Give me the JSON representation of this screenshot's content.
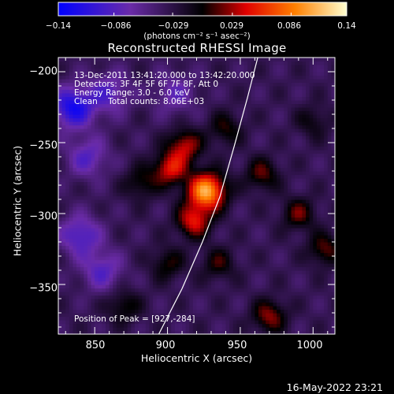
{
  "chart_data": {
    "type": "heatmap",
    "title": "Reconstructed RHESSI Image",
    "xlabel": "Heliocentric X (arcsec)",
    "ylabel": "Heliocentric Y (arcsec)",
    "xlim": [
      825,
      1015
    ],
    "ylim": [
      -385,
      -190
    ],
    "x_ticks": [
      "850",
      "900",
      "950",
      "1000"
    ],
    "y_ticks": [
      "−200",
      "−250",
      "−300",
      "−350"
    ],
    "colorbar": {
      "range": [
        -0.14,
        0.14
      ],
      "tick_labels": [
        "−0.14",
        "−0.086",
        "−0.029",
        "0.029",
        "0.086",
        "0.14"
      ],
      "tick_values": [
        -0.14,
        -0.086,
        -0.029,
        0.029,
        0.086,
        0.14
      ],
      "units": "(photons cm⁻² s⁻¹ asec⁻²)",
      "colors": [
        "#0000ff",
        "#6a2ba8",
        "#000000",
        "#ff0000",
        "#ff8800",
        "#ffffaa"
      ]
    },
    "annotations": [
      "13-Dec-2011 13:41:20.000 to 13:42:20.000",
      "Detectors: 3F 4F 5F 6F 7F 8F, Att 0",
      "Energy Range: 3.0 - 6.0 keV",
      "Clean    Total counts: 8.06E+03"
    ],
    "peak_label": "Position of Peak = [927,-284]",
    "peak": {
      "x": 927,
      "y": -284,
      "value": 0.14
    },
    "secondary_sources": [
      {
        "x": 912,
        "y": -252,
        "value": 0.07
      },
      {
        "x": 902,
        "y": -268,
        "value": 0.08
      },
      {
        "x": 918,
        "y": -305,
        "value": 0.08
      },
      {
        "x": 900,
        "y": -335,
        "value": 0.04
      },
      {
        "x": 882,
        "y": -278,
        "value": 0.04
      },
      {
        "x": 965,
        "y": -272,
        "value": 0.05
      },
      {
        "x": 990,
        "y": -300,
        "value": 0.05
      },
      {
        "x": 970,
        "y": -372,
        "value": 0.06
      },
      {
        "x": 1008,
        "y": -325,
        "value": 0.05
      },
      {
        "x": 935,
        "y": -335,
        "value": 0.04
      },
      {
        "x": 940,
        "y": -240,
        "value": 0.04
      },
      {
        "x": 1000,
        "y": -235,
        "value": 0.03
      },
      {
        "x": 870,
        "y": -365,
        "value": 0.04
      }
    ],
    "negative_regions": [
      {
        "x": 835,
        "y": -225,
        "value": -0.09
      },
      {
        "x": 845,
        "y": -260,
        "value": -0.05
      },
      {
        "x": 840,
        "y": -315,
        "value": -0.06
      },
      {
        "x": 860,
        "y": -215,
        "value": -0.05
      },
      {
        "x": 905,
        "y": -215,
        "value": -0.04
      },
      {
        "x": 855,
        "y": -340,
        "value": -0.05
      }
    ],
    "limb_curve": [
      [
        894,
        -385
      ],
      [
        910,
        -353
      ],
      [
        924,
        -320
      ],
      [
        936,
        -288
      ],
      [
        946,
        -252
      ],
      [
        955,
        -218
      ],
      [
        962,
        -190
      ]
    ],
    "limb_color": "#ffffff"
  },
  "timestamp": "16-May-2022 23:21"
}
